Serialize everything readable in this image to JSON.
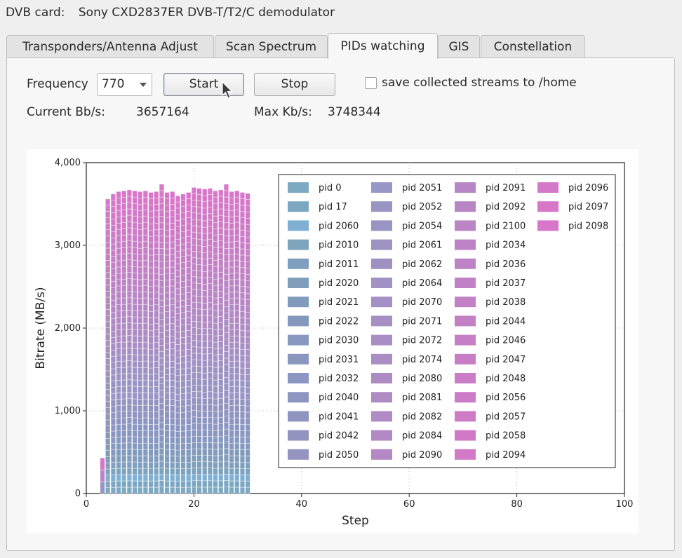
{
  "header": {
    "card_label": "DVB card:",
    "card_value": "Sony CXD2837ER DVB-T/T2/C demodulator"
  },
  "tabs": [
    {
      "label": "Transponders/Antenna Adjust",
      "active": false
    },
    {
      "label": "Scan Spectrum",
      "active": false
    },
    {
      "label": "PIDs watching",
      "active": true
    },
    {
      "label": "GIS",
      "active": false
    },
    {
      "label": "Constellation",
      "active": false
    }
  ],
  "controls": {
    "frequency_label": "Frequency",
    "frequency_value": "770",
    "start_label": "Start",
    "stop_label": "Stop",
    "save_label": "save collected streams to /home",
    "save_checked": false
  },
  "stats": {
    "current_label": "Current Bb/s:",
    "current_value": "3657164",
    "max_label": "Max Kb/s:",
    "max_value": "3748344"
  },
  "chart_data": {
    "type": "bar",
    "stacked": true,
    "xlabel": "Step",
    "ylabel": "Bitrate (MB/s)",
    "xlim": [
      0,
      100
    ],
    "ylim": [
      0,
      4000
    ],
    "x_ticks": [
      "0",
      "20",
      "40",
      "60",
      "80",
      "100"
    ],
    "y_ticks": [
      "0",
      "1,000",
      "2,000",
      "3,000",
      "4,000"
    ],
    "grid": true,
    "legend_position": "inside-right",
    "x": [
      3,
      4,
      5,
      6,
      7,
      8,
      9,
      10,
      11,
      12,
      13,
      14,
      15,
      16,
      17,
      18,
      19,
      20,
      21,
      22,
      23,
      24,
      25,
      26,
      27,
      28,
      29,
      30
    ],
    "totals": [
      430,
      3560,
      3620,
      3650,
      3660,
      3670,
      3660,
      3650,
      3660,
      3640,
      3650,
      3740,
      3640,
      3650,
      3600,
      3620,
      3640,
      3700,
      3690,
      3680,
      3690,
      3660,
      3670,
      3740,
      3650,
      3660,
      3640,
      3630
    ],
    "series": [
      {
        "name": "pid 0",
        "color": "#7ea9c3"
      },
      {
        "name": "pid 17",
        "color": "#7ca7c2"
      },
      {
        "name": "pid 2060",
        "color": "#7fb0d3"
      },
      {
        "name": "pid 2010",
        "color": "#7da3bd"
      },
      {
        "name": "pid 2011",
        "color": "#7f9fbe"
      },
      {
        "name": "pid 2020",
        "color": "#809dbc"
      },
      {
        "name": "pid 2021",
        "color": "#829bbc"
      },
      {
        "name": "pid 2022",
        "color": "#8499bd"
      },
      {
        "name": "pid 2030",
        "color": "#8798c1"
      },
      {
        "name": "pid 2031",
        "color": "#8996bf"
      },
      {
        "name": "pid 2032",
        "color": "#8b97c2"
      },
      {
        "name": "pid 2040",
        "color": "#8d95c1"
      },
      {
        "name": "pid 2041",
        "color": "#8f94c1"
      },
      {
        "name": "pid 2042",
        "color": "#9294bf"
      },
      {
        "name": "pid 2050",
        "color": "#9494c0"
      },
      {
        "name": "pid 2051",
        "color": "#9796c7"
      },
      {
        "name": "pid 2052",
        "color": "#9895c2"
      },
      {
        "name": "pid 2054",
        "color": "#9a94c4"
      },
      {
        "name": "pid 2061",
        "color": "#9c93c2"
      },
      {
        "name": "pid 2062",
        "color": "#9f92c3"
      },
      {
        "name": "pid 2064",
        "color": "#a191c4"
      },
      {
        "name": "pid 2070",
        "color": "#a390c4"
      },
      {
        "name": "pid 2071",
        "color": "#a58fc3"
      },
      {
        "name": "pid 2072",
        "color": "#a88ec4"
      },
      {
        "name": "pid 2074",
        "color": "#aa8dc3"
      },
      {
        "name": "pid 2080",
        "color": "#ac8cc3"
      },
      {
        "name": "pid 2081",
        "color": "#ae8bc3"
      },
      {
        "name": "pid 2082",
        "color": "#b08ac4"
      },
      {
        "name": "pid 2084",
        "color": "#b289c5"
      },
      {
        "name": "pid 2090",
        "color": "#b488c4"
      },
      {
        "name": "pid 2091",
        "color": "#b687c4"
      },
      {
        "name": "pid 2092",
        "color": "#b886c4"
      },
      {
        "name": "pid 2100",
        "color": "#ba85c4"
      },
      {
        "name": "pid 2034",
        "color": "#bc84c4"
      },
      {
        "name": "pid 2036",
        "color": "#be83c4"
      },
      {
        "name": "pid 2037",
        "color": "#c082c4"
      },
      {
        "name": "pid 2038",
        "color": "#c281c5"
      },
      {
        "name": "pid 2044",
        "color": "#c480c5"
      },
      {
        "name": "pid 2046",
        "color": "#c67fc5"
      },
      {
        "name": "pid 2047",
        "color": "#c87ec5"
      },
      {
        "name": "pid 2048",
        "color": "#ca7dc6"
      },
      {
        "name": "pid 2056",
        "color": "#cc7cc6"
      },
      {
        "name": "pid 2057",
        "color": "#ce7bc6"
      },
      {
        "name": "pid 2058",
        "color": "#d07ac7"
      },
      {
        "name": "pid 2094",
        "color": "#d279c7"
      },
      {
        "name": "pid 2096",
        "color": "#d478c8"
      },
      {
        "name": "pid 2097",
        "color": "#d677c8"
      },
      {
        "name": "pid 2098",
        "color": "#d876c9"
      }
    ]
  }
}
